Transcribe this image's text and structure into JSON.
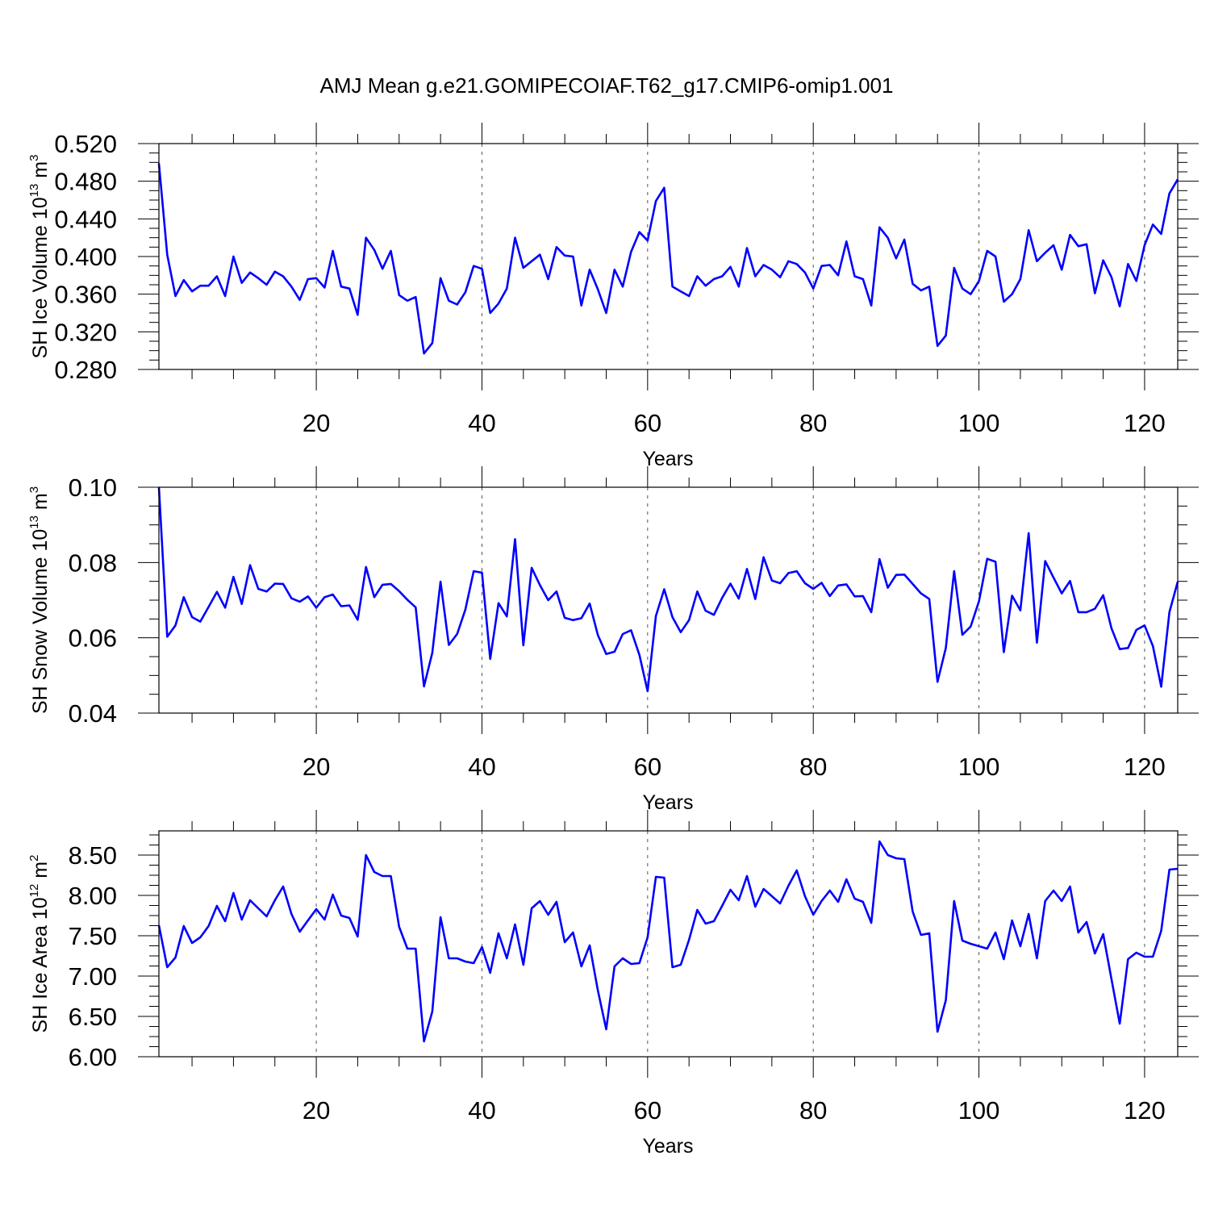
{
  "title": "AMJ Mean g.e21.GOMIPECOIAF.T62_g17.CMIP6-omip1.001",
  "colors": {
    "line": "#0000ff",
    "axis": "#000000",
    "grid": "#555555"
  },
  "x_axis": {
    "label": "Years",
    "ticks": [
      20,
      40,
      60,
      80,
      100,
      120
    ],
    "range": [
      1,
      124
    ]
  },
  "chart_data": [
    {
      "type": "line",
      "id": "ice-volume",
      "title": "AMJ Mean g.e21.GOMIPECOIAF.T62_g17.CMIP6-omip1.001",
      "xlabel": "Years",
      "ylabel": "SH Ice Volume 10^13 m^3",
      "ylabel_parts": {
        "text": "SH Ice Volume 10",
        "exp1": "13",
        "mid": " m",
        "exp2": "3"
      },
      "ylim": [
        0.28,
        0.52
      ],
      "yticks": [
        "0.520",
        "0.480",
        "0.440",
        "0.400",
        "0.360",
        "0.320",
        "0.280"
      ],
      "ytick_values": [
        0.52,
        0.48,
        0.44,
        0.4,
        0.36,
        0.32,
        0.28
      ],
      "xlim": [
        1,
        124
      ],
      "x_start": 1,
      "values": [
        0.499,
        0.402,
        0.358,
        0.375,
        0.363,
        0.369,
        0.369,
        0.379,
        0.358,
        0.4,
        0.372,
        0.383,
        0.377,
        0.37,
        0.384,
        0.379,
        0.368,
        0.354,
        0.376,
        0.377,
        0.367,
        0.406,
        0.368,
        0.366,
        0.338,
        0.42,
        0.407,
        0.387,
        0.406,
        0.359,
        0.353,
        0.357,
        0.297,
        0.308,
        0.377,
        0.353,
        0.349,
        0.362,
        0.39,
        0.387,
        0.34,
        0.35,
        0.366,
        0.42,
        0.388,
        0.395,
        0.402,
        0.376,
        0.41,
        0.401,
        0.4,
        0.348,
        0.386,
        0.365,
        0.34,
        0.386,
        0.368,
        0.405,
        0.426,
        0.417,
        0.459,
        0.473,
        0.368,
        0.363,
        0.358,
        0.379,
        0.369,
        0.376,
        0.379,
        0.389,
        0.368,
        0.409,
        0.379,
        0.391,
        0.386,
        0.378,
        0.395,
        0.392,
        0.383,
        0.366,
        0.39,
        0.391,
        0.38,
        0.416,
        0.379,
        0.376,
        0.348,
        0.431,
        0.42,
        0.398,
        0.418,
        0.371,
        0.364,
        0.368,
        0.305,
        0.316,
        0.388,
        0.366,
        0.36,
        0.374,
        0.406,
        0.4,
        0.352,
        0.36,
        0.376,
        0.428,
        0.395,
        0.404,
        0.412,
        0.386,
        0.423,
        0.411,
        0.413,
        0.361,
        0.396,
        0.378,
        0.347,
        0.392,
        0.374,
        0.412,
        0.434,
        0.424,
        0.467,
        0.482
      ]
    },
    {
      "type": "line",
      "id": "snow-volume",
      "xlabel": "Years",
      "ylabel": "SH Snow Volume 10^13 m^3",
      "ylabel_parts": {
        "text": "SH Snow Volume 10",
        "exp1": "13",
        "mid": " m",
        "exp2": "3"
      },
      "ylim": [
        0.04,
        0.1
      ],
      "yticks": [
        "0.10",
        "0.08",
        "0.06",
        "0.04"
      ],
      "ytick_values": [
        0.1,
        0.08,
        0.06,
        0.04
      ],
      "xlim": [
        1,
        124
      ],
      "x_start": 1,
      "values": [
        0.1,
        0.0603,
        0.0633,
        0.0708,
        0.0655,
        0.0643,
        0.0682,
        0.0722,
        0.068,
        0.0762,
        0.069,
        0.0793,
        0.073,
        0.0723,
        0.0744,
        0.0743,
        0.0705,
        0.0696,
        0.071,
        0.068,
        0.0708,
        0.0715,
        0.0684,
        0.0686,
        0.0648,
        0.0788,
        0.0708,
        0.0741,
        0.0743,
        0.0724,
        0.0701,
        0.0681,
        0.0471,
        0.056,
        0.0749,
        0.0581,
        0.061,
        0.0675,
        0.0777,
        0.0773,
        0.0544,
        0.0692,
        0.0657,
        0.0862,
        0.058,
        0.0786,
        0.074,
        0.07,
        0.0723,
        0.0653,
        0.0647,
        0.0652,
        0.0691,
        0.0607,
        0.0557,
        0.0563,
        0.061,
        0.062,
        0.0555,
        0.0458,
        0.0658,
        0.0729,
        0.0655,
        0.0615,
        0.0647,
        0.0723,
        0.0672,
        0.0661,
        0.0706,
        0.0744,
        0.0704,
        0.0783,
        0.0703,
        0.0814,
        0.0752,
        0.0745,
        0.0772,
        0.0777,
        0.0745,
        0.073,
        0.0746,
        0.0711,
        0.0739,
        0.0742,
        0.071,
        0.0711,
        0.0668,
        0.0809,
        0.0733,
        0.0767,
        0.0768,
        0.0743,
        0.0718,
        0.0703,
        0.0483,
        0.0573,
        0.0777,
        0.0608,
        0.063,
        0.0697,
        0.081,
        0.0802,
        0.0562,
        0.0712,
        0.0673,
        0.0878,
        0.0587,
        0.0804,
        0.076,
        0.0718,
        0.0751,
        0.0668,
        0.0668,
        0.0677,
        0.0713,
        0.0625,
        0.057,
        0.0573,
        0.0621,
        0.0633,
        0.0578,
        0.047,
        0.0668,
        0.0749
      ]
    },
    {
      "type": "line",
      "id": "ice-area",
      "xlabel": "Years",
      "ylabel": "SH Ice Area 10^12 m^2",
      "ylabel_parts": {
        "text": "SH Ice Area 10",
        "exp1": "12",
        "mid": " m",
        "exp2": "2"
      },
      "ylim": [
        6.0,
        8.8
      ],
      "yticks": [
        "8.50",
        "8.00",
        "7.50",
        "7.00",
        "6.50",
        "6.00"
      ],
      "ytick_values": [
        8.5,
        8.0,
        7.5,
        7.0,
        6.5,
        6.0
      ],
      "xlim": [
        1,
        124
      ],
      "x_start": 1,
      "values": [
        7.63,
        7.11,
        7.23,
        7.62,
        7.41,
        7.48,
        7.62,
        7.87,
        7.68,
        8.03,
        7.7,
        7.94,
        7.84,
        7.74,
        7.94,
        8.11,
        7.77,
        7.55,
        7.69,
        7.83,
        7.7,
        8.01,
        7.75,
        7.72,
        7.49,
        8.5,
        8.29,
        8.24,
        8.24,
        7.61,
        7.34,
        7.34,
        6.19,
        6.56,
        7.73,
        7.22,
        7.22,
        7.18,
        7.16,
        7.36,
        7.04,
        7.53,
        7.22,
        7.64,
        7.14,
        7.84,
        7.93,
        7.76,
        7.92,
        7.42,
        7.54,
        7.12,
        7.38,
        6.82,
        6.34,
        7.12,
        7.22,
        7.15,
        7.16,
        7.48,
        8.23,
        8.22,
        7.11,
        7.14,
        7.45,
        7.82,
        7.65,
        7.68,
        7.87,
        8.07,
        7.94,
        8.24,
        7.86,
        8.08,
        7.99,
        7.9,
        8.12,
        8.31,
        7.99,
        7.76,
        7.93,
        8.06,
        7.92,
        8.2,
        7.96,
        7.92,
        7.66,
        8.67,
        8.5,
        8.46,
        8.45,
        7.8,
        7.51,
        7.53,
        6.31,
        6.7,
        7.93,
        7.44,
        7.4,
        7.37,
        7.34,
        7.54,
        7.21,
        7.69,
        7.37,
        7.77,
        7.22,
        7.93,
        8.06,
        7.93,
        8.11,
        7.54,
        7.67,
        7.28,
        7.52,
        6.96,
        6.41,
        7.21,
        7.29,
        7.24,
        7.24,
        7.56,
        8.32,
        8.33
      ]
    }
  ]
}
